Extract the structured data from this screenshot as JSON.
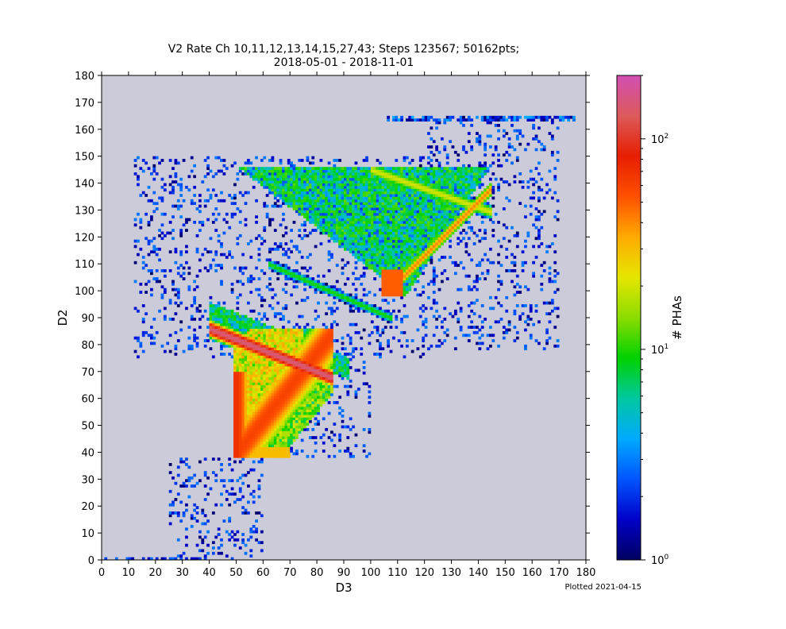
{
  "chart_data": {
    "type": "heatmap",
    "title_line1": "V2 Rate Ch 10,11,12,13,14,15,27,43; Steps 123567; 50162pts;",
    "title_line2": "2018-05-01 - 2018-11-01",
    "xlabel": "D3",
    "ylabel": "D2",
    "xlim": [
      0,
      180
    ],
    "ylim": [
      0,
      180
    ],
    "xticks": [
      "0",
      "10",
      "20",
      "30",
      "40",
      "50",
      "60",
      "70",
      "80",
      "90",
      "100",
      "110",
      "120",
      "130",
      "140",
      "150",
      "160",
      "170",
      "180"
    ],
    "yticks": [
      "0",
      "10",
      "20",
      "30",
      "40",
      "50",
      "60",
      "70",
      "80",
      "90",
      "100",
      "110",
      "120",
      "130",
      "140",
      "150",
      "160",
      "170",
      "180"
    ],
    "bin_size": 1,
    "background_color": "#cccbd9",
    "colorbar": {
      "label": "# PHAs",
      "scale": "log",
      "range": [
        1,
        200
      ],
      "ticks": [
        {
          "value": 1,
          "base": "10",
          "exp": "0"
        },
        {
          "value": 10,
          "base": "10",
          "exp": "1"
        },
        {
          "value": 100,
          "base": "10",
          "exp": "2"
        }
      ],
      "colormap": [
        "#000060",
        "#0000c8",
        "#0055ff",
        "#00aaff",
        "#00c8a0",
        "#00d200",
        "#8cdc00",
        "#e6e600",
        "#ffaa00",
        "#ff5000",
        "#e61e00",
        "#dc5a5a",
        "#d250b4"
      ]
    },
    "regions": [
      {
        "name": "lower wedge",
        "x": [
          49,
          85
        ],
        "y": [
          38,
          86
        ],
        "peak_counts": 180
      },
      {
        "name": "lower band",
        "x": [
          40,
          85
        ],
        "y": [
          65,
          87
        ],
        "peak_counts": 150
      },
      {
        "name": "middle arc",
        "x": [
          62,
          108
        ],
        "y": [
          88,
          110
        ],
        "peak_counts": 12
      },
      {
        "name": "upper wedge",
        "x": [
          72,
          145
        ],
        "y": [
          98,
          145
        ],
        "peak_counts": 60
      },
      {
        "name": "top row",
        "x": [
          106,
          176
        ],
        "y": [
          163,
          165
        ],
        "peak_counts": 3
      },
      {
        "name": "bottom row",
        "x": [
          0,
          40
        ],
        "y": [
          0,
          1
        ],
        "peak_counts": 3
      }
    ],
    "footnote": "Plotted 2021-04-15"
  }
}
